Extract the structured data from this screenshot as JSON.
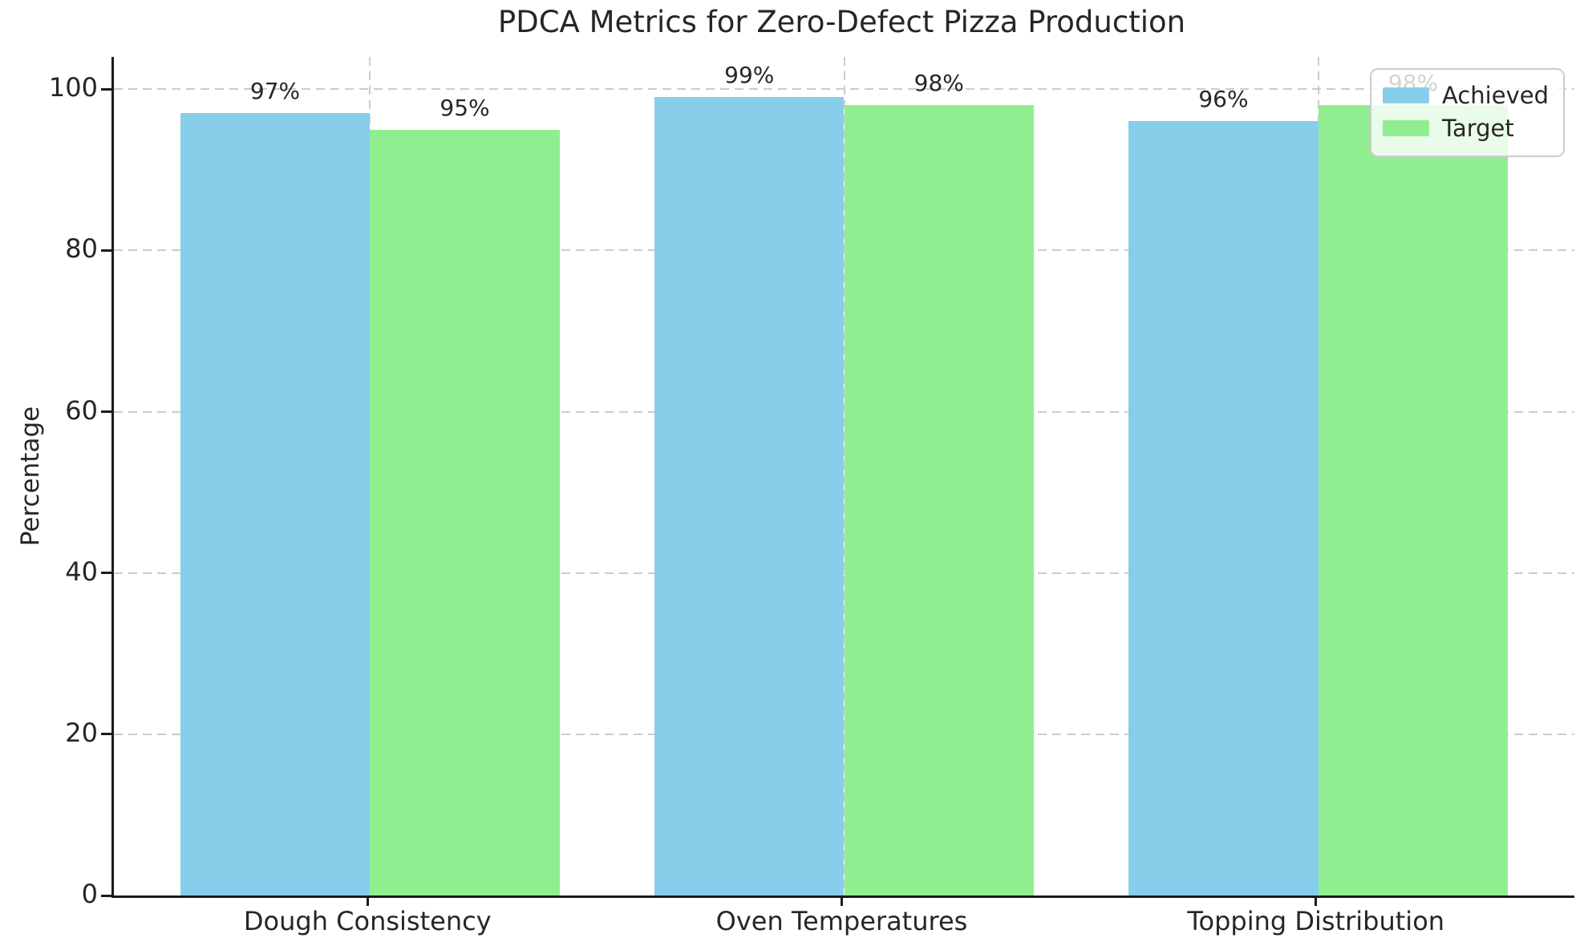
{
  "chart_data": {
    "type": "bar",
    "title": "PDCA Metrics for Zero-Defect Pizza Production",
    "xlabel": "",
    "ylabel": "Percentage",
    "categories": [
      "Dough Consistency",
      "Oven Temperatures",
      "Topping Distribution"
    ],
    "series": [
      {
        "name": "Achieved",
        "color": "#87CEEB",
        "values": [
          97,
          99,
          96
        ]
      },
      {
        "name": "Target",
        "color": "#90EE90",
        "values": [
          95,
          98,
          98
        ]
      }
    ],
    "value_label_suffix": "%",
    "yticks": [
      0,
      20,
      40,
      60,
      80,
      100
    ],
    "ylim": [
      0,
      104
    ],
    "xlim": [
      -0.54,
      2.54
    ],
    "bar_width": 0.4,
    "grid": true,
    "grid_style": "dashed",
    "legend_position": "upper right"
  },
  "style": {
    "achieved_color": "#87CEEB",
    "target_color": "#90EE90",
    "text_color": "#262626",
    "grid_color": "#cccccc",
    "spine_color": "#1a1a1a",
    "legend_border_color": "#cccccc",
    "legend_background": "rgba(255,255,255,0.8)",
    "background": "#ffffff"
  }
}
